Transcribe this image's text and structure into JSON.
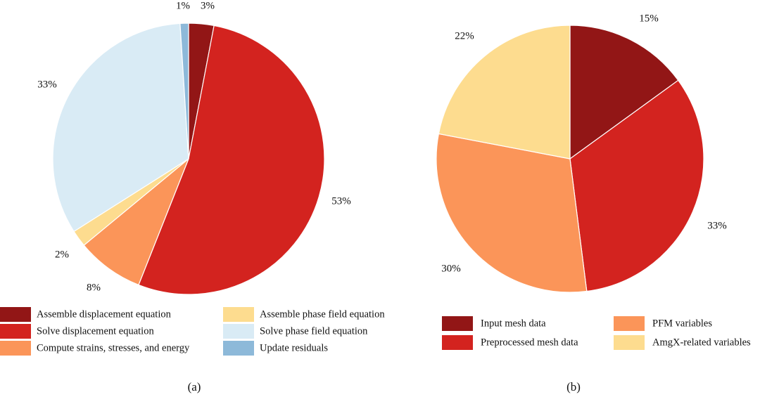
{
  "chart_data": [
    {
      "type": "pie",
      "caption": "(a)",
      "start_angle_deg": 0,
      "direction": "clockwise",
      "slices": [
        {
          "label": "Assemble displacement equation",
          "value": 3,
          "value_label": "3%",
          "color": "#921616"
        },
        {
          "label": "Solve displacement equation",
          "value": 53,
          "value_label": "53%",
          "color": "#d3231f"
        },
        {
          "label": "Compute strains, stresses, and energy",
          "value": 8,
          "value_label": "8%",
          "color": "#fb9559"
        },
        {
          "label": "Assemble phase field equation",
          "value": 2,
          "value_label": "2%",
          "color": "#fddc8f"
        },
        {
          "label": "Solve phase field equation",
          "value": 33,
          "value_label": "33%",
          "color": "#d9ebf5"
        },
        {
          "label": "Update residuals",
          "value": 1,
          "value_label": "1%",
          "color": "#8db9d9"
        }
      ]
    },
    {
      "type": "pie",
      "caption": "(b)",
      "start_angle_deg": 0,
      "direction": "clockwise",
      "slices": [
        {
          "label": "Input mesh data",
          "value": 15,
          "value_label": "15%",
          "color": "#921616"
        },
        {
          "label": "Preprocessed mesh data",
          "value": 33,
          "value_label": "33%",
          "color": "#d3231f"
        },
        {
          "label": "PFM variables",
          "value": 30,
          "value_label": "30%",
          "color": "#fb9559"
        },
        {
          "label": "AmgX-related variables",
          "value": 22,
          "value_label": "22%",
          "color": "#fddc8f"
        }
      ]
    }
  ]
}
